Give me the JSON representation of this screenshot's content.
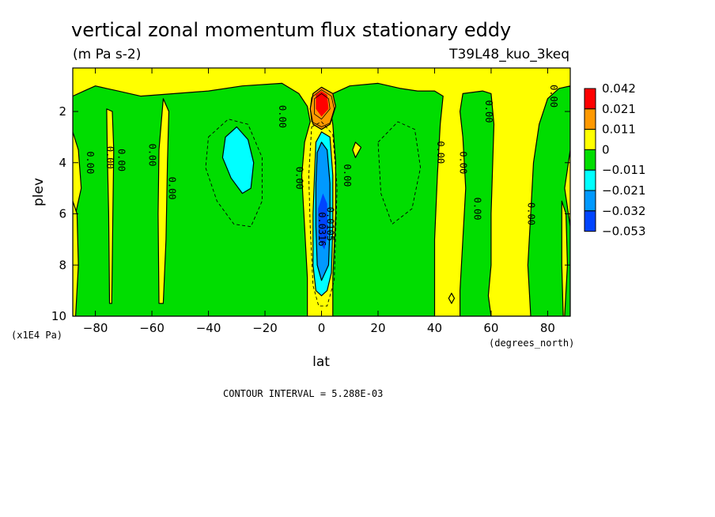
{
  "chart_data": {
    "type": "heatmap",
    "title": "vertical zonal momentum flux stationary eddy",
    "units": "(m Pa s-2)",
    "run_label": "T39L48_kuo_3keq",
    "xlabel": "lat",
    "ylabel": "plev",
    "x_unit_note": "(degrees_north)",
    "y_unit_note": "(x1E4 Pa)",
    "xlim": [
      -88,
      88
    ],
    "ylim": [
      0.3,
      10
    ],
    "y_inverted": true,
    "x_ticks": [
      -80,
      -60,
      -40,
      -20,
      0,
      20,
      40,
      60,
      80
    ],
    "x_tick_labels": [
      "−80",
      "−60",
      "−40",
      "−20",
      "0",
      "20",
      "40",
      "60",
      "80"
    ],
    "y_ticks": [
      2,
      4,
      6,
      8,
      10
    ],
    "y_tick_labels": [
      "2",
      "4",
      "6",
      "8",
      "10"
    ],
    "contour_interval_text": "CONTOUR INTERVAL = 5.288E-03",
    "legend": {
      "placement": "right",
      "levels": [
        {
          "label": "0.042",
          "color": "#ff0000"
        },
        {
          "label": "0.021",
          "color": "#ff9900"
        },
        {
          "label": "0.011",
          "color": "#ffff00"
        },
        {
          "label": "0",
          "color": "#00dd00"
        },
        {
          "label": "−0.011",
          "color": "#00ffff"
        },
        {
          "label": "−0.021",
          "color": "#0099ff"
        },
        {
          "label": "−0.032",
          "color": "#0044ff"
        },
        {
          "label": "−0.053",
          "color": null
        }
      ]
    },
    "background_color": "#ffff00",
    "regions": [
      {
        "color": "#00dd00",
        "outline": true,
        "pts": [
          [
            -88,
            1.4
          ],
          [
            -84,
            1.2
          ],
          [
            -80,
            1.0
          ],
          [
            -76,
            1.1
          ],
          [
            -72,
            1.2
          ],
          [
            -64,
            1.4
          ],
          [
            -52,
            1.3
          ],
          [
            -40,
            1.2
          ],
          [
            -28,
            1.0
          ],
          [
            -14,
            0.9
          ],
          [
            -8,
            1.3
          ],
          [
            -5,
            1.8
          ],
          [
            -4,
            2.4
          ],
          [
            -6,
            3.2
          ],
          [
            -7,
            4.5
          ],
          [
            -6,
            6.5
          ],
          [
            -5,
            8.5
          ],
          [
            -5,
            10
          ],
          [
            -88,
            10
          ],
          [
            -88,
            6.5
          ],
          [
            -85,
            5.0
          ],
          [
            -86,
            3.5
          ],
          [
            -88,
            2.8
          ]
        ]
      },
      {
        "color": "#00dd00",
        "outline": true,
        "pts": [
          [
            4,
            1.3
          ],
          [
            10,
            1.0
          ],
          [
            20,
            0.9
          ],
          [
            28,
            1.1
          ],
          [
            34,
            1.2
          ],
          [
            40,
            1.2
          ],
          [
            43,
            1.4
          ],
          [
            42,
            2.5
          ],
          [
            41,
            4.5
          ],
          [
            40,
            7
          ],
          [
            40,
            10
          ],
          [
            4,
            10
          ],
          [
            4,
            8.5
          ],
          [
            5,
            6
          ],
          [
            5,
            4
          ],
          [
            4,
            2.5
          ],
          [
            3,
            1.8
          ]
        ]
      },
      {
        "color": "#00dd00",
        "outline": true,
        "pts": [
          [
            50,
            1.3
          ],
          [
            57,
            1.2
          ],
          [
            60,
            1.3
          ],
          [
            61,
            2.5
          ],
          [
            60,
            6
          ],
          [
            60,
            8
          ],
          [
            59,
            9.2
          ],
          [
            60,
            10
          ],
          [
            74,
            10
          ],
          [
            73,
            8
          ],
          [
            74,
            6
          ],
          [
            75,
            4
          ],
          [
            77,
            2.5
          ],
          [
            80,
            1.5
          ],
          [
            84,
            1.1
          ],
          [
            88,
            1.0
          ],
          [
            88,
            3.5
          ],
          [
            86,
            5
          ],
          [
            88,
            6.5
          ],
          [
            88,
            10
          ],
          [
            49,
            10
          ],
          [
            49,
            9
          ],
          [
            50,
            7
          ],
          [
            51,
            5
          ],
          [
            50,
            3
          ],
          [
            49,
            2
          ]
        ]
      },
      {
        "color": "#ffff00",
        "outline": true,
        "pts": [
          [
            -76,
            1.9
          ],
          [
            -74,
            2.0
          ],
          [
            -73.5,
            3.5
          ],
          [
            -73.8,
            6
          ],
          [
            -74.2,
            9.5
          ],
          [
            -75,
            9.5
          ],
          [
            -75.3,
            6
          ],
          [
            -75.8,
            3.5
          ]
        ]
      },
      {
        "color": "#ffff00",
        "outline": true,
        "pts": [
          [
            -56,
            1.5
          ],
          [
            -54,
            2.0
          ],
          [
            -54.5,
            4
          ],
          [
            -55,
            7
          ],
          [
            -56,
            9.5
          ],
          [
            -57.5,
            9.5
          ],
          [
            -57.8,
            6
          ],
          [
            -57.5,
            3.5
          ]
        ]
      },
      {
        "color": "#ffff00",
        "outline": true,
        "pts": [
          [
            -88,
            5.5
          ],
          [
            -86.5,
            6
          ],
          [
            -86,
            8
          ],
          [
            -87,
            10
          ],
          [
            -88,
            10
          ]
        ]
      },
      {
        "color": "#ffff00",
        "outline": true,
        "pts": [
          [
            85,
            5.5
          ],
          [
            86.5,
            6
          ],
          [
            87,
            8
          ],
          [
            86,
            10
          ],
          [
            85.5,
            10
          ],
          [
            85,
            8
          ]
        ]
      },
      {
        "color": "#ffff00",
        "outline": true,
        "pts": [
          [
            12,
            3.2
          ],
          [
            14,
            3.4
          ],
          [
            12,
            3.8
          ],
          [
            11,
            3.5
          ]
        ]
      },
      {
        "color": "#ffff00",
        "outline": true,
        "pts": [
          [
            46,
            9.1
          ],
          [
            47,
            9.3
          ],
          [
            46,
            9.5
          ],
          [
            45,
            9.3
          ]
        ]
      },
      {
        "color": "#ff9900",
        "outline": true,
        "pts": [
          [
            -3,
            1.3
          ],
          [
            0,
            1.05
          ],
          [
            4,
            1.3
          ],
          [
            5,
            1.8
          ],
          [
            3,
            2.5
          ],
          [
            0,
            2.7
          ],
          [
            -3,
            2.5
          ],
          [
            -4,
            1.9
          ]
        ]
      },
      {
        "color": "#ff0000",
        "outline": false,
        "pts": [
          [
            -2,
            1.35
          ],
          [
            0,
            1.2
          ],
          [
            2,
            1.35
          ],
          [
            2.5,
            1.9
          ],
          [
            0,
            2.2
          ],
          [
            -2,
            1.9
          ]
        ]
      },
      {
        "color": "#00ffff",
        "outline": true,
        "pts": [
          [
            -34,
            3.0
          ],
          [
            -30,
            2.6
          ],
          [
            -26,
            3.1
          ],
          [
            -24,
            4.0
          ],
          [
            -25,
            5.0
          ],
          [
            -28,
            5.2
          ],
          [
            -32,
            4.6
          ],
          [
            -35,
            3.8
          ]
        ]
      },
      {
        "color": "#00ffff",
        "outline": true,
        "pts": [
          [
            0,
            2.8
          ],
          [
            3,
            3.0
          ],
          [
            4,
            4.5
          ],
          [
            4,
            6.5
          ],
          [
            3.5,
            8.3
          ],
          [
            2,
            9.0
          ],
          [
            0,
            9.2
          ],
          [
            -2,
            9.0
          ],
          [
            -3,
            8.0
          ],
          [
            -3,
            6.0
          ],
          [
            -2.5,
            4.5
          ],
          [
            -2,
            3.2
          ]
        ]
      },
      {
        "color": "#0099ff",
        "outline": true,
        "pts": [
          [
            0,
            3.2
          ],
          [
            2,
            3.5
          ],
          [
            3,
            4.8
          ],
          [
            3,
            6.5
          ],
          [
            2.5,
            8.0
          ],
          [
            0,
            8.6
          ],
          [
            -1.5,
            8.0
          ],
          [
            -2,
            6.5
          ],
          [
            -2,
            4.8
          ],
          [
            -1.5,
            3.6
          ]
        ]
      },
      {
        "color": "#0044ff",
        "outline": false,
        "pts": [
          [
            0.5,
            5.2
          ],
          [
            2,
            5.6
          ],
          [
            2.2,
            6.8
          ],
          [
            1,
            7.4
          ],
          [
            -1,
            7.0
          ],
          [
            -1.2,
            5.8
          ]
        ]
      }
    ],
    "dashed_contours": [
      [
        [
          -40,
          3.0
        ],
        [
          -33,
          2.3
        ],
        [
          -26,
          2.5
        ],
        [
          -21,
          3.8
        ],
        [
          -21,
          5.5
        ],
        [
          -25,
          6.5
        ],
        [
          -31,
          6.4
        ],
        [
          -37,
          5.5
        ],
        [
          -41,
          4.2
        ]
      ],
      [
        [
          20,
          3.2
        ],
        [
          27,
          2.4
        ],
        [
          33,
          2.7
        ],
        [
          35,
          4.2
        ],
        [
          32,
          5.8
        ],
        [
          25,
          6.4
        ],
        [
          21,
          5.2
        ]
      ],
      [
        [
          -3.5,
          2.6
        ],
        [
          0,
          2.4
        ],
        [
          4,
          2.9
        ],
        [
          5.5,
          5
        ],
        [
          4.5,
          8.6
        ],
        [
          2,
          9.6
        ],
        [
          -1,
          9.6
        ],
        [
          -3,
          8.8
        ],
        [
          -4,
          6.5
        ],
        [
          -4.5,
          4.5
        ]
      ]
    ],
    "solid_thin_contours": [
      [
        [
          -3.5,
          1.45
        ],
        [
          0,
          1.15
        ],
        [
          3.5,
          1.4
        ],
        [
          4.5,
          1.9
        ],
        [
          3,
          2.45
        ],
        [
          0,
          2.6
        ],
        [
          -3.5,
          2.4
        ],
        [
          -4,
          1.9
        ]
      ],
      [
        [
          -2.5,
          1.5
        ],
        [
          0,
          1.3
        ],
        [
          2.5,
          1.5
        ],
        [
          3,
          1.9
        ],
        [
          0,
          2.3
        ],
        [
          -2.5,
          2.1
        ]
      ]
    ],
    "contour_labels": [
      {
        "text": "0.00",
        "lat": -82,
        "plev": 4.0,
        "angle": 90
      },
      {
        "text": "0.00",
        "lat": -75,
        "plev": 3.8,
        "angle": 90
      },
      {
        "text": "0.00",
        "lat": -71,
        "plev": 3.9,
        "angle": 90
      },
      {
        "text": "0.00",
        "lat": -60,
        "plev": 3.7,
        "angle": 90
      },
      {
        "text": "0.00",
        "lat": -53,
        "plev": 5.0,
        "angle": 90
      },
      {
        "text": "0.00",
        "lat": -14,
        "plev": 2.2,
        "angle": 90
      },
      {
        "text": "0.00",
        "lat": -8,
        "plev": 4.6,
        "angle": 90
      },
      {
        "text": "0.00",
        "lat": 9,
        "plev": 4.5,
        "angle": 90
      },
      {
        "text": "0.0105",
        "lat": 3,
        "plev": 6.4,
        "angle": 90
      },
      {
        "text": "0.0316",
        "lat": 0,
        "plev": 6.6,
        "angle": 90
      },
      {
        "text": "0.00",
        "lat": 42,
        "plev": 3.6,
        "angle": 90
      },
      {
        "text": "0.00",
        "lat": 50,
        "plev": 4.0,
        "angle": 90
      },
      {
        "text": "0.00",
        "lat": 55,
        "plev": 5.8,
        "angle": 90
      },
      {
        "text": "0.00",
        "lat": 59,
        "plev": 2.0,
        "angle": 90
      },
      {
        "text": "0.00",
        "lat": 74,
        "plev": 6.0,
        "angle": 90
      },
      {
        "text": "0.00",
        "lat": 82,
        "plev": 1.4,
        "angle": 90
      }
    ]
  }
}
